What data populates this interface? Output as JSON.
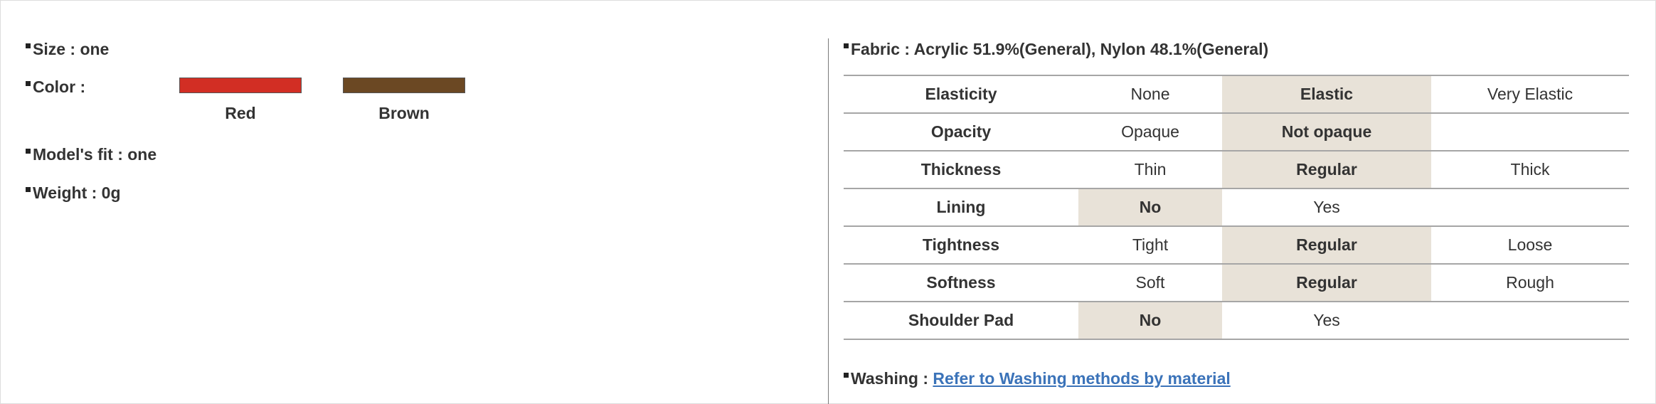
{
  "left": {
    "size": "Size : one",
    "color_label": "Color :",
    "colors": [
      {
        "name": "Red",
        "hex": "#d22e24"
      },
      {
        "name": "Brown",
        "hex": "#6b4823"
      }
    ],
    "model_fit": "Model's fit : one",
    "weight": "Weight : 0g"
  },
  "fabric": {
    "title": "Fabric : Acrylic 51.9%(General), Nylon 48.1%(General)",
    "highlight_color": "#e8e2d8",
    "rows": [
      {
        "label": "Elasticity",
        "options": [
          "None",
          "Elastic",
          "Very Elastic"
        ],
        "selected": "Elastic"
      },
      {
        "label": "Opacity",
        "options": [
          "Opaque",
          "Not opaque",
          ""
        ],
        "selected": "Not opaque"
      },
      {
        "label": "Thickness",
        "options": [
          "Thin",
          "Regular",
          "Thick"
        ],
        "selected": "Regular"
      },
      {
        "label": "Lining",
        "options": [
          "No",
          "Yes",
          ""
        ],
        "selected": "No"
      },
      {
        "label": "Tightness",
        "options": [
          "Tight",
          "Regular",
          "Loose"
        ],
        "selected": "Regular"
      },
      {
        "label": "Softness",
        "options": [
          "Soft",
          "Regular",
          "Rough"
        ],
        "selected": "Regular"
      },
      {
        "label": "Shoulder Pad",
        "options": [
          "No",
          "Yes",
          ""
        ],
        "selected": "No"
      }
    ]
  },
  "washing": {
    "label": "Washing :",
    "link_text": "Refer to Washing methods by material",
    "link_color": "#3b73b9"
  }
}
